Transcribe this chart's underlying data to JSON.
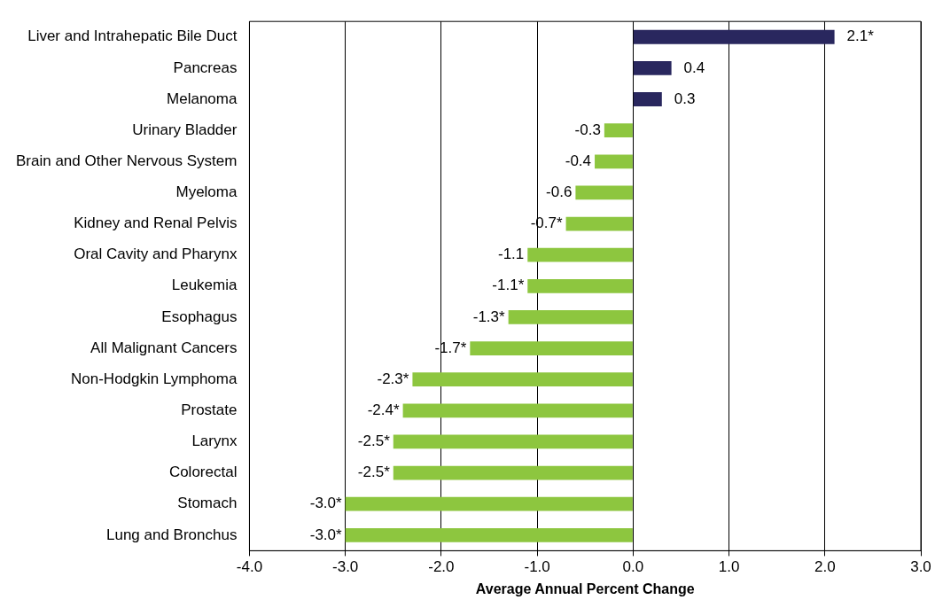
{
  "chart_data": {
    "type": "bar",
    "orientation": "horizontal",
    "xlabel": "Average Annual Percent Change",
    "categories": [
      "Liver and Intrahepatic Bile Duct",
      "Pancreas",
      "Melanoma",
      "Urinary Bladder",
      "Brain and Other Nervous System",
      "Myeloma",
      "Kidney and Renal Pelvis",
      "Oral Cavity and Pharynx",
      "Leukemia",
      "Esophagus",
      "All Malignant Cancers",
      "Non-Hodgkin Lymphoma",
      "Prostate",
      "Larynx",
      "Colorectal",
      "Stomach",
      "Lung and Bronchus"
    ],
    "values": [
      2.1,
      0.4,
      0.3,
      -0.3,
      -0.4,
      -0.6,
      -0.7,
      -1.1,
      -1.1,
      -1.3,
      -1.7,
      -2.3,
      -2.4,
      -2.5,
      -2.5,
      -3.0,
      -3.0
    ],
    "value_labels": [
      "2.1*",
      "0.4",
      "0.3",
      "-0.3",
      "-0.4",
      "-0.6",
      "-0.7*",
      "-1.1",
      "-1.1*",
      "-1.3*",
      "-1.7*",
      "-2.3*",
      "-2.4*",
      "-2.5*",
      "-2.5*",
      "-3.0*",
      "-3.0*"
    ],
    "colors": [
      "#29275e",
      "#29275e",
      "#29275e",
      "#8dc63f",
      "#8dc63f",
      "#8dc63f",
      "#8dc63f",
      "#8dc63f",
      "#8dc63f",
      "#8dc63f",
      "#8dc63f",
      "#8dc63f",
      "#8dc63f",
      "#8dc63f",
      "#8dc63f",
      "#8dc63f",
      "#8dc63f"
    ],
    "xlim": [
      -4,
      3
    ],
    "xticks": [
      {
        "value": -4,
        "label": "-4.0"
      },
      {
        "value": -3,
        "label": "-3.0"
      },
      {
        "value": -2,
        "label": "-2.0"
      },
      {
        "value": -1,
        "label": "-1.0"
      },
      {
        "value": 0,
        "label": "0.0"
      },
      {
        "value": 1,
        "label": "1.0"
      },
      {
        "value": 2,
        "label": "2.0"
      },
      {
        "value": 3,
        "label": "3.0"
      }
    ],
    "grid": "x"
  }
}
